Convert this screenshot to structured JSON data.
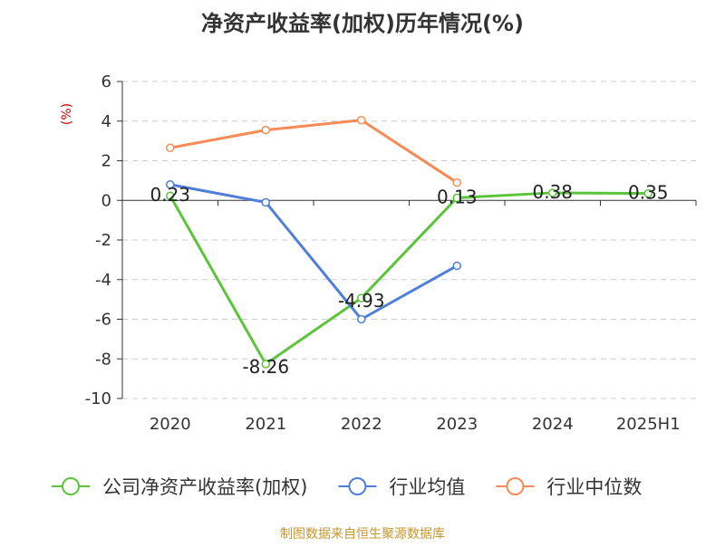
{
  "chart_data": {
    "type": "line",
    "title": "净资产收益率(加权)历年情况(%)",
    "ylabel": "(%)",
    "categories": [
      "2020",
      "2021",
      "2022",
      "2023",
      "2024",
      "2025H1"
    ],
    "ylim": [
      -10,
      6
    ],
    "yticks": [
      6,
      4,
      2,
      0,
      -2,
      -4,
      -6,
      -8,
      -10
    ],
    "grid": true,
    "legend_position": "bottom",
    "series": [
      {
        "name": "公司净资产收益率(加权)",
        "color": "#5cc43a",
        "values": [
          0.23,
          -8.26,
          -4.93,
          0.13,
          0.38,
          0.35
        ],
        "labels": [
          "0.23",
          "-8.26",
          "-4.93",
          "0.13",
          "0.38",
          "0.35"
        ]
      },
      {
        "name": "行业均值",
        "color": "#4f7fd9",
        "values": [
          0.8,
          -0.1,
          -6.0,
          -3.3,
          null,
          null
        ]
      },
      {
        "name": "行业中位数",
        "color": "#f78b56",
        "values": [
          2.65,
          3.55,
          4.05,
          0.9,
          null,
          null
        ]
      }
    ]
  },
  "source": "制图数据来自恒生聚源数据库",
  "colors": {
    "title": "#333333",
    "ylabel": "#cc0000",
    "source": "#c8962e",
    "grid": "#cccccc",
    "axis": "#333333"
  }
}
